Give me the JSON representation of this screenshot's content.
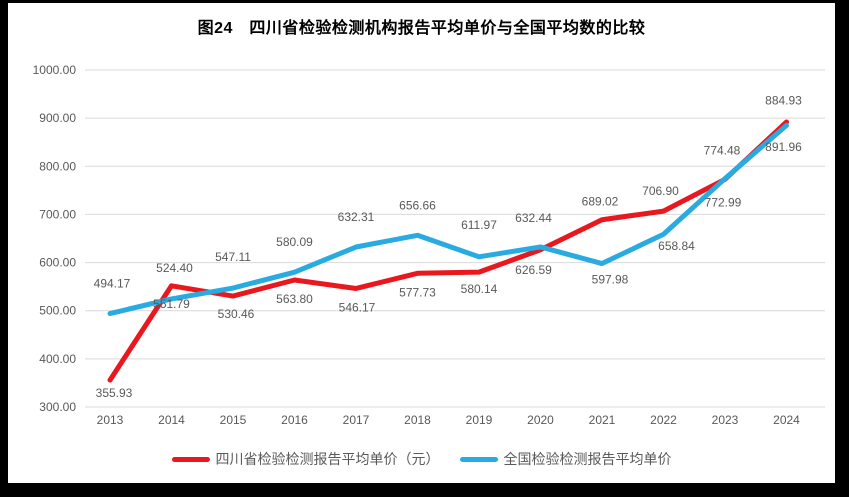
{
  "page": {
    "title": "图24　四川省检验检测机构报告平均单价与全国平均数的比较"
  },
  "chart_data": {
    "type": "line",
    "title": "图24　四川省检验检测机构报告平均单价与全国平均数的比较",
    "categories": [
      "2013",
      "2014",
      "2015",
      "2016",
      "2017",
      "2018",
      "2019",
      "2020",
      "2021",
      "2022",
      "2023",
      "2024"
    ],
    "series": [
      {
        "name": "四川省检验检测报告平均单价（元）",
        "color": "#e8181e",
        "values": [
          355.93,
          551.79,
          530.46,
          563.8,
          546.17,
          577.73,
          580.14,
          626.59,
          689.02,
          706.9,
          772.99,
          891.96
        ]
      },
      {
        "name": "全国检验检测报告平均单价",
        "color": "#29abe2",
        "values": [
          494.17,
          524.4,
          547.11,
          580.09,
          632.31,
          656.66,
          611.97,
          632.44,
          597.98,
          658.84,
          774.48,
          884.93
        ]
      }
    ],
    "ylabel": "",
    "xlabel": "",
    "ylim": [
      300,
      1000
    ],
    "ytick_step": 100,
    "ytick_labels": [
      "300.00",
      "400.00",
      "500.00",
      "600.00",
      "700.00",
      "800.00",
      "900.00",
      "1000.00"
    ],
    "grid": true,
    "grid_color": "#d9d9d9",
    "tick_label_color": "#595959",
    "data_label_color": "#595959",
    "legend_position": "bottom",
    "data_labels_shown": true
  }
}
